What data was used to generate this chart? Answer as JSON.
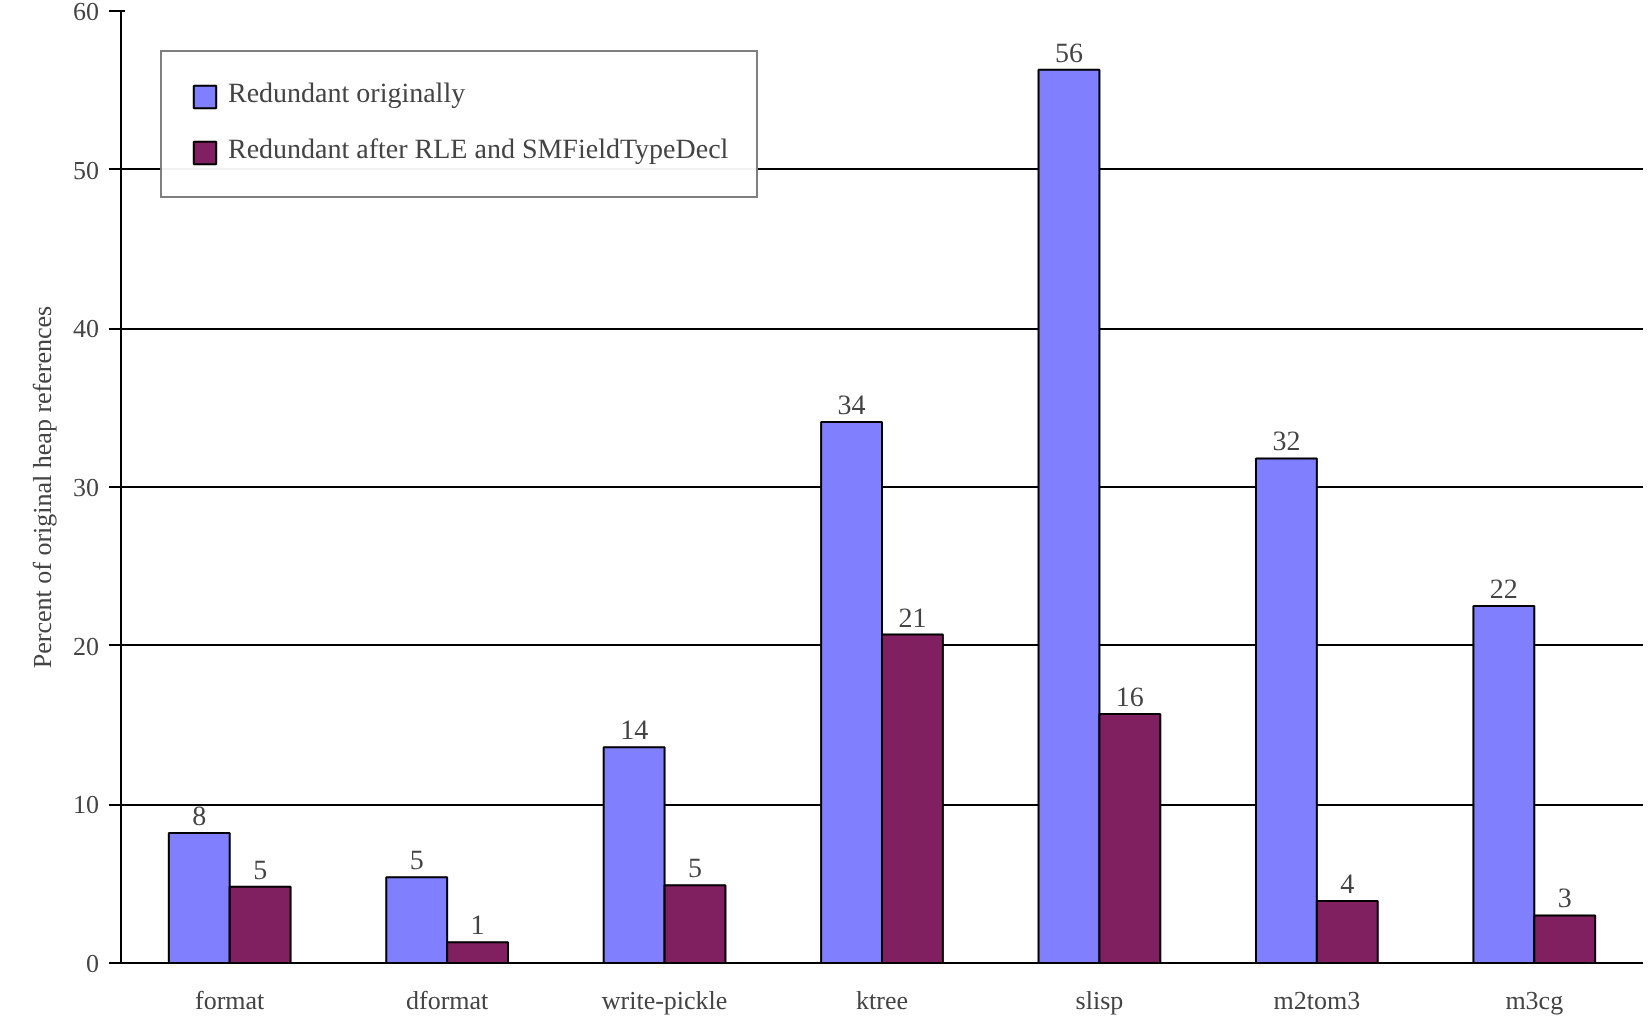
{
  "chart_data": {
    "type": "bar",
    "ylabel": "Percent of original heap references",
    "categories": [
      "format",
      "dformat",
      "write-pickle",
      "ktree",
      "slisp",
      "m2tom3",
      "m3cg"
    ],
    "series": [
      {
        "name": "Redundant originally",
        "color": "#8080ff",
        "values": [
          8.2,
          5.4,
          13.6,
          34.1,
          56.3,
          31.8,
          22.5
        ],
        "value_labels": [
          "8",
          "5",
          "14",
          "34",
          "56",
          "32",
          "22"
        ]
      },
      {
        "name": "Redundant after RLE and SMFieldTypeDecl",
        "color": "#802060",
        "values": [
          4.8,
          1.3,
          4.9,
          20.7,
          15.7,
          3.9,
          3.0
        ],
        "value_labels": [
          "5",
          "1",
          "5",
          "21",
          "16",
          "4",
          "3"
        ]
      }
    ],
    "ylim": [
      0,
      60
    ],
    "yticks": [
      0,
      10,
      20,
      30,
      40,
      50,
      60
    ],
    "grid": "y",
    "legend": "top left"
  }
}
